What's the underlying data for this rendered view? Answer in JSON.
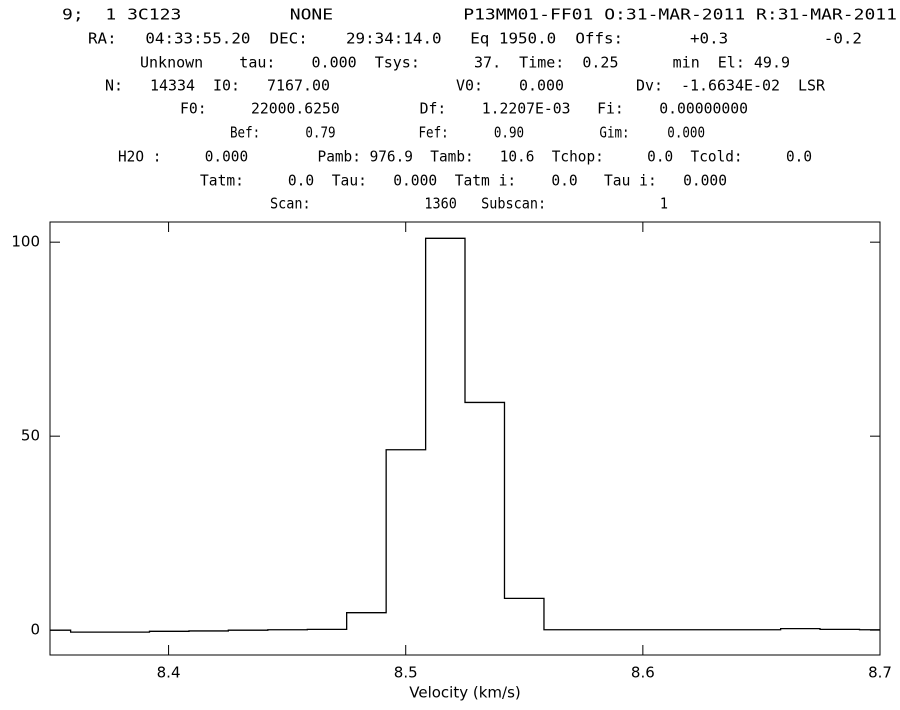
{
  "chart_data": {
    "type": "step",
    "annotations": [
      "9;  1 3C123          NONE            P13MM01-FF01 O:31-MAR-2011 R:31-MAR-2011",
      "RA:   04:33:55.20  DEC:    29:34:14.0   Eq 1950.0  Offs:       +0.3          -0.2",
      "Unknown    tau:    0.000  Tsys:      37.  Time:  0.25      min  El: 49.9",
      "N:   14334  I0:   7167.00              V0:    0.000        Dv:  -1.6634E-02  LSR",
      "F0:     22000.6250         Df:    1.2207E-03   Fi:    0.00000000",
      "Bef:      0.79           Fef:      0.90          Gim:     0.000",
      "H2O :     0.000        Pamb: 976.9  Tamb:   10.6  Tchop:     0.0  Tcold:     0.0",
      "Tatm:     0.0  Tau:   0.000  Tatm i:    0.0   Tau i:   0.000",
      "Scan:              1360   Subscan:              1"
    ],
    "x_label": "Velocity (km/s)",
    "x": [
      8.3504,
      8.367,
      8.3836,
      8.4003,
      8.4169,
      8.4335,
      8.4502,
      8.4668,
      8.4834,
      8.5001,
      8.5167,
      8.5333,
      8.55,
      8.5666,
      8.5832,
      8.5999,
      8.6165,
      8.6331,
      8.6498,
      8.6664,
      8.683,
      8.6997
    ],
    "values": [
      0,
      -0.5,
      -0.5,
      -0.3,
      -0.2,
      0,
      0.1,
      0.2,
      4.5,
      46.5,
      101,
      58.7,
      8.2,
      0.1,
      0.1,
      0.1,
      0.1,
      0.1,
      0.1,
      0.4,
      0.2,
      0.1
    ],
    "color": "#000000",
    "xlim": [
      8.35,
      8.7
    ],
    "ylim": [
      -6.4,
      105.2
    ],
    "xticks": [
      8.4,
      8.5,
      8.6,
      8.7
    ],
    "yticks": [
      0,
      50,
      100
    ]
  }
}
